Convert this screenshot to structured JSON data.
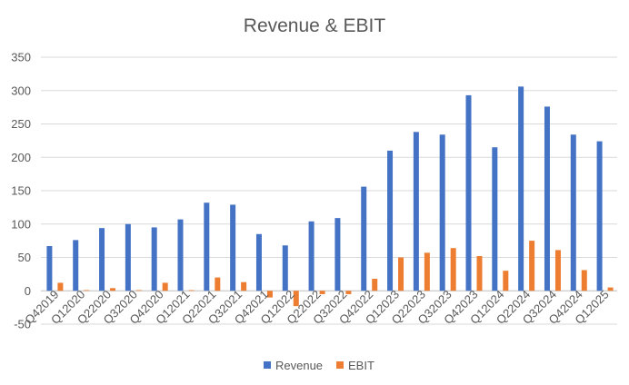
{
  "chart_data": {
    "type": "bar",
    "title": "Revenue & EBIT",
    "xlabel": "",
    "ylabel": "",
    "ylim": [
      -50,
      350
    ],
    "yticks": [
      -50,
      0,
      50,
      100,
      150,
      200,
      250,
      300,
      350
    ],
    "grid": true,
    "legend": "bottom",
    "categories": [
      "Q42019",
      "Q12020",
      "Q22020",
      "Q32020",
      "Q42020",
      "Q12021",
      "Q22021",
      "Q32021",
      "Q42021",
      "Q12022",
      "Q22022",
      "Q32022",
      "Q42022",
      "Q12023",
      "Q22023",
      "Q32023",
      "Q42023",
      "Q12024",
      "Q22024",
      "Q32024",
      "Q42024",
      "Q12025"
    ],
    "series": [
      {
        "name": "Revenue",
        "color": "#4472C4",
        "values": [
          67,
          76,
          94,
          100,
          95,
          107,
          132,
          129,
          85,
          68,
          104,
          109,
          156,
          210,
          238,
          234,
          293,
          215,
          306,
          276,
          234,
          224
        ]
      },
      {
        "name": "EBIT",
        "color": "#ED7D31",
        "values": [
          12,
          1,
          4,
          1,
          12,
          1,
          20,
          13,
          -10,
          -23,
          -5,
          -5,
          18,
          50,
          57,
          64,
          52,
          30,
          75,
          61,
          31,
          5
        ]
      }
    ]
  }
}
